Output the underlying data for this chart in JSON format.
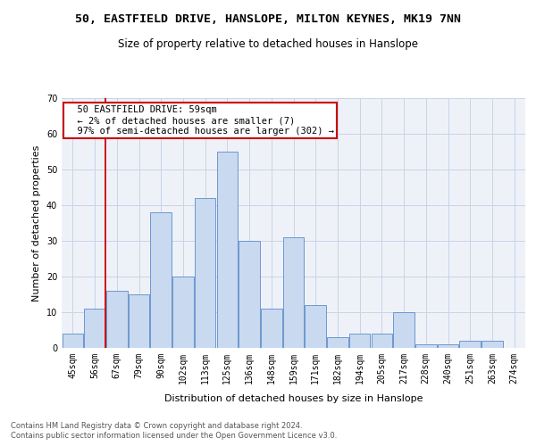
{
  "title_line1": "50, EASTFIELD DRIVE, HANSLOPE, MILTON KEYNES, MK19 7NN",
  "title_line2": "Size of property relative to detached houses in Hanslope",
  "xlabel": "Distribution of detached houses by size in Hanslope",
  "ylabel": "Number of detached properties",
  "categories": [
    "45sqm",
    "56sqm",
    "67sqm",
    "79sqm",
    "90sqm",
    "102sqm",
    "113sqm",
    "125sqm",
    "136sqm",
    "148sqm",
    "159sqm",
    "171sqm",
    "182sqm",
    "194sqm",
    "205sqm",
    "217sqm",
    "228sqm",
    "240sqm",
    "251sqm",
    "263sqm",
    "274sqm"
  ],
  "bar_heights": [
    4,
    11,
    16,
    15,
    38,
    20,
    42,
    55,
    30,
    11,
    31,
    12,
    3,
    4,
    4,
    10,
    1,
    1,
    2,
    2,
    0
  ],
  "bar_color": "#c9d9f0",
  "bar_edge_color": "#5b8cc8",
  "grid_color": "#c8d4e8",
  "background_color": "#eef2f8",
  "annotation_text": "  50 EASTFIELD DRIVE: 59sqm\n  ← 2% of detached houses are smaller (7)\n  97% of semi-detached houses are larger (302) →",
  "annotation_box_color": "#ffffff",
  "annotation_box_edge": "#cc0000",
  "red_line_x": 1.5,
  "ylim": [
    0,
    70
  ],
  "yticks": [
    0,
    10,
    20,
    30,
    40,
    50,
    60,
    70
  ],
  "footer_line1": "Contains HM Land Registry data © Crown copyright and database right 2024.",
  "footer_line2": "Contains public sector information licensed under the Open Government Licence v3.0.",
  "title_fontsize": 9.5,
  "subtitle_fontsize": 8.5,
  "axis_label_fontsize": 8,
  "tick_fontsize": 7,
  "footer_fontsize": 6,
  "annotation_fontsize": 7.5
}
